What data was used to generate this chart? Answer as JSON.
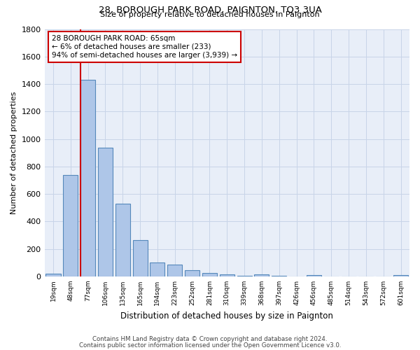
{
  "title": "28, BOROUGH PARK ROAD, PAIGNTON, TQ3 3UA",
  "subtitle": "Size of property relative to detached houses in Paignton",
  "xlabel": "Distribution of detached houses by size in Paignton",
  "ylabel": "Number of detached properties",
  "footnote1": "Contains HM Land Registry data © Crown copyright and database right 2024.",
  "footnote2": "Contains public sector information licensed under the Open Government Licence v3.0.",
  "bar_labels": [
    "19sqm",
    "48sqm",
    "77sqm",
    "106sqm",
    "135sqm",
    "165sqm",
    "194sqm",
    "223sqm",
    "252sqm",
    "281sqm",
    "310sqm",
    "339sqm",
    "368sqm",
    "397sqm",
    "426sqm",
    "456sqm",
    "485sqm",
    "514sqm",
    "543sqm",
    "572sqm",
    "601sqm"
  ],
  "bar_values": [
    20,
    740,
    1430,
    935,
    530,
    265,
    103,
    88,
    46,
    27,
    15,
    5,
    14,
    3,
    2,
    10,
    2,
    0,
    0,
    0,
    12
  ],
  "bar_color": "#aec6e8",
  "bar_edge_color": "#5588bb",
  "bar_edge_width": 0.8,
  "grid_color": "#c8d4e8",
  "bg_color": "#e8eef8",
  "vline_color": "#cc0000",
  "vline_index": 2,
  "annotation_text": "28 BOROUGH PARK ROAD: 65sqm\n← 6% of detached houses are smaller (233)\n94% of semi-detached houses are larger (3,939) →",
  "annotation_box_color": "#ffffff",
  "annotation_box_edge": "#cc0000",
  "ylim": [
    0,
    1800
  ],
  "yticks": [
    0,
    200,
    400,
    600,
    800,
    1000,
    1200,
    1400,
    1600,
    1800
  ]
}
